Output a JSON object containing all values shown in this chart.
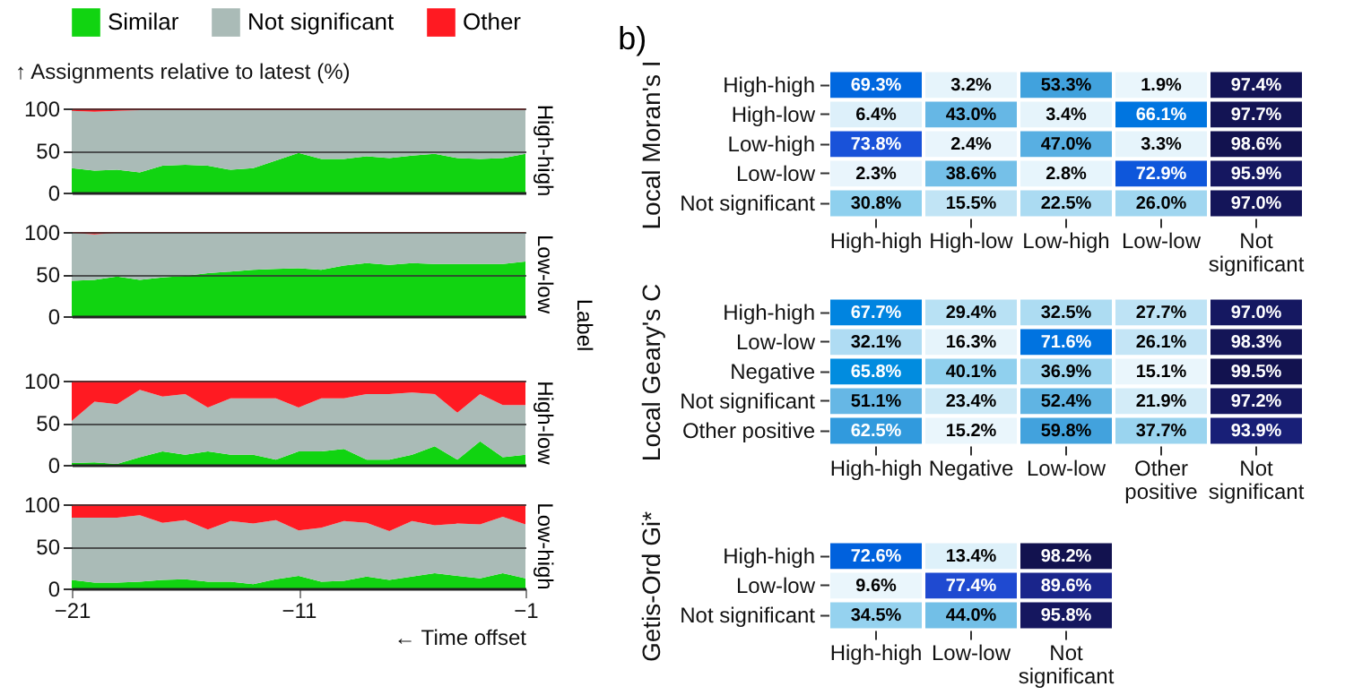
{
  "chart_data": [
    {
      "type": "area",
      "title": "High-high",
      "ylabel": "↑ Assignments relative to latest (%)",
      "stacked": true,
      "legend": "top",
      "grid": "y",
      "tick_labels": "y",
      "xlim": [
        -21,
        -1
      ],
      "xticks": [
        -21,
        -11,
        -1
      ],
      "ylim": [
        0,
        100
      ],
      "yticks": [
        0,
        50,
        100
      ],
      "x": [
        -21,
        -20,
        -19,
        -18,
        -17,
        -16,
        -15,
        -14,
        -13,
        -12,
        -11,
        -10,
        -9,
        -8,
        -7,
        -6,
        -5,
        -4,
        -3,
        -2,
        -1
      ],
      "series": [
        {
          "name": "Similar",
          "color": "#11d411",
          "values": [
            29,
            26,
            27,
            24,
            32,
            33,
            32,
            27,
            29,
            38,
            47,
            40,
            40,
            43,
            41,
            44,
            46,
            41,
            40,
            41,
            46
          ]
        },
        {
          "name": "Not significant",
          "color": "#aabbb7",
          "values": [
            68,
            70,
            70,
            74,
            66,
            65,
            66,
            71,
            69,
            60,
            51,
            58,
            58,
            55,
            57,
            54,
            52,
            57,
            58,
            57,
            52
          ]
        },
        {
          "name": "Other",
          "color": "#ff1a22",
          "values": [
            3,
            4,
            3,
            2,
            2,
            2,
            2,
            2,
            2,
            2,
            2,
            2,
            2,
            2,
            2,
            2,
            2,
            2,
            2,
            2,
            2
          ]
        }
      ]
    },
    {
      "type": "area",
      "title": "Low-low",
      "y2label": "Label",
      "stacked": true,
      "grid": "y",
      "tick_labels": "y",
      "xlim": [
        -21,
        -1
      ],
      "xticks": [
        -21,
        -11,
        -1
      ],
      "ylim": [
        0,
        100
      ],
      "yticks": [
        0,
        50,
        100
      ],
      "x": [
        -21,
        -20,
        -19,
        -18,
        -17,
        -16,
        -15,
        -14,
        -13,
        -12,
        -11,
        -10,
        -9,
        -8,
        -7,
        -6,
        -5,
        -4,
        -3,
        -2,
        -1
      ],
      "series": [
        {
          "color": "#11d411",
          "values": [
            42,
            43,
            47,
            43,
            46,
            48,
            51,
            53,
            55,
            56,
            57,
            55,
            60,
            63,
            61,
            63,
            62,
            62,
            62,
            62,
            65
          ]
        },
        {
          "color": "#aabbb7",
          "values": [
            57,
            54,
            52,
            56,
            53,
            51,
            48,
            46,
            44,
            43,
            42,
            44,
            39,
            36,
            38,
            36,
            37,
            37,
            37,
            37,
            34
          ]
        },
        {
          "color": "#ff1a22",
          "values": [
            1,
            3,
            1,
            1,
            1,
            1,
            1,
            1,
            1,
            1,
            1,
            1,
            1,
            1,
            1,
            1,
            1,
            1,
            1,
            1,
            1
          ]
        }
      ]
    },
    {
      "type": "area",
      "title": "High-low",
      "stacked": true,
      "grid": "y",
      "tick_labels": "y",
      "xlim": [
        -21,
        -1
      ],
      "xticks": [
        -21,
        -11,
        -1
      ],
      "ylim": [
        0,
        100
      ],
      "yticks": [
        0,
        50,
        100
      ],
      "x": [
        -21,
        -20,
        -19,
        -18,
        -17,
        -16,
        -15,
        -14,
        -13,
        -12,
        -11,
        -10,
        -9,
        -8,
        -7,
        -6,
        -5,
        -4,
        -3,
        -2,
        -1
      ],
      "series": [
        {
          "color": "#11d411",
          "values": [
            2,
            3,
            1,
            9,
            16,
            12,
            16,
            12,
            12,
            6,
            16,
            16,
            19,
            6,
            6,
            12,
            22,
            6,
            28,
            9,
            12
          ]
        },
        {
          "color": "#aabbb7",
          "values": [
            50,
            72,
            71,
            80,
            65,
            72,
            52,
            67,
            67,
            73,
            52,
            63,
            60,
            78,
            78,
            74,
            62,
            56,
            56,
            62,
            59
          ]
        },
        {
          "color": "#ff1a22",
          "values": [
            48,
            25,
            28,
            11,
            19,
            16,
            32,
            21,
            21,
            21,
            32,
            21,
            21,
            16,
            16,
            14,
            16,
            38,
            16,
            29,
            29
          ]
        }
      ]
    },
    {
      "type": "area",
      "title": "Low-high",
      "xlabel": "← Time offset",
      "stacked": true,
      "grid": "y",
      "xlim": [
        -21,
        -1
      ],
      "xticks": [
        -21,
        -11,
        -1
      ],
      "ylim": [
        0,
        100
      ],
      "yticks": [
        0,
        50,
        100
      ],
      "x": [
        -21,
        -20,
        -19,
        -18,
        -17,
        -16,
        -15,
        -14,
        -13,
        -12,
        -11,
        -10,
        -9,
        -8,
        -7,
        -6,
        -5,
        -4,
        -3,
        -2,
        -1
      ],
      "series": [
        {
          "color": "#11d411",
          "values": [
            10,
            7,
            7,
            8,
            10,
            11,
            8,
            8,
            5,
            11,
            15,
            8,
            9,
            14,
            10,
            14,
            18,
            15,
            12,
            18,
            12
          ]
        },
        {
          "color": "#aabbb7",
          "values": [
            74,
            77,
            77,
            79,
            68,
            70,
            62,
            72,
            72,
            70,
            54,
            64,
            71,
            64,
            58,
            66,
            57,
            62,
            64,
            67,
            64
          ]
        },
        {
          "color": "#ff1a22",
          "values": [
            16,
            16,
            16,
            13,
            22,
            19,
            30,
            20,
            23,
            19,
            31,
            28,
            20,
            22,
            32,
            20,
            25,
            23,
            24,
            15,
            24
          ]
        }
      ]
    },
    {
      "type": "heatmap",
      "title": "b)",
      "ylabel": "Local Moran's I",
      "categories": [
        "High-high",
        "High-low",
        "Low-high",
        "Low-low",
        "Not significant"
      ],
      "y_categories": [
        "High-high",
        "High-low",
        "Low-high",
        "Low-low",
        "Not significant"
      ],
      "cells": [
        [
          69.3,
          3.2,
          53.3,
          1.9,
          97.4
        ],
        [
          6.4,
          43.0,
          3.4,
          66.1,
          97.7
        ],
        [
          73.8,
          2.4,
          47.0,
          3.3,
          98.6
        ],
        [
          2.3,
          38.6,
          2.8,
          72.9,
          95.9
        ],
        [
          30.8,
          15.5,
          22.5,
          26.0,
          97.0
        ]
      ],
      "cell_labels": [
        [
          "69.3%",
          "3.2%",
          "53.3%",
          "1.9%",
          "97.4%"
        ],
        [
          "6.4%",
          "43.0%",
          "3.4%",
          "66.1%",
          "97.7%"
        ],
        [
          "73.8%",
          "2.4%",
          "47.0%",
          "3.3%",
          "98.6%"
        ],
        [
          "2.3%",
          "38.6%",
          "2.8%",
          "72.9%",
          "95.9%"
        ],
        [
          "30.8%",
          "15.5%",
          "22.5%",
          "26.0%",
          "97.0%"
        ]
      ]
    },
    {
      "type": "heatmap",
      "ylabel": "Local Geary's C",
      "categories": [
        "High-high",
        "Negative",
        "Low-low",
        "Other positive",
        "Not significant"
      ],
      "y_categories": [
        "High-high",
        "Low-low",
        "Negative",
        "Not significant",
        "Other positive"
      ],
      "cells": [
        [
          67.7,
          29.4,
          32.5,
          27.7,
          97.0
        ],
        [
          32.1,
          16.3,
          71.6,
          26.1,
          98.3
        ],
        [
          65.8,
          40.1,
          36.9,
          15.1,
          99.5
        ],
        [
          51.1,
          23.4,
          52.4,
          21.9,
          97.2
        ],
        [
          62.5,
          15.2,
          59.8,
          37.7,
          93.9
        ]
      ],
      "cell_labels": [
        [
          "67.7%",
          "29.4%",
          "32.5%",
          "27.7%",
          "97.0%"
        ],
        [
          "32.1%",
          "16.3%",
          "71.6%",
          "26.1%",
          "98.3%"
        ],
        [
          "65.8%",
          "40.1%",
          "36.9%",
          "15.1%",
          "99.5%"
        ],
        [
          "51.1%",
          "23.4%",
          "52.4%",
          "21.9%",
          "97.2%"
        ],
        [
          "62.5%",
          "15.2%",
          "59.8%",
          "37.7%",
          "93.9%"
        ]
      ]
    },
    {
      "type": "heatmap",
      "ylabel": "Getis-Ord Gi*",
      "categories": [
        "High-high",
        "Low-low",
        "Not significant"
      ],
      "y_categories": [
        "High-high",
        "Low-low",
        "Not significant"
      ],
      "cells": [
        [
          72.6,
          13.4,
          98.2
        ],
        [
          9.6,
          77.4,
          89.6
        ],
        [
          34.5,
          44.0,
          95.8
        ]
      ],
      "cell_labels": [
        [
          "72.6%",
          "13.4%",
          "98.2%"
        ],
        [
          "9.6%",
          "77.4%",
          "89.6%"
        ],
        [
          "34.5%",
          "44.0%",
          "95.8%"
        ]
      ]
    }
  ]
}
